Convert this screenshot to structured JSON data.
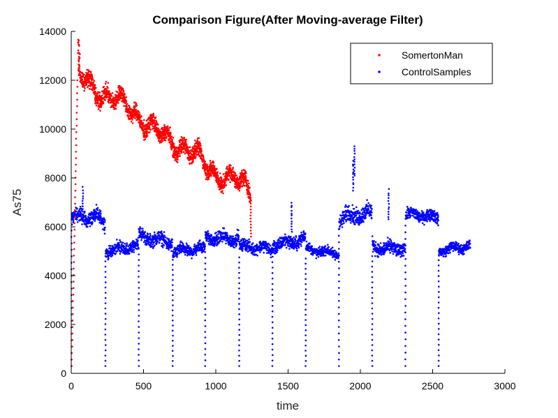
{
  "chart_data": {
    "type": "scatter",
    "title": "Comparison Figure(After Moving-average Filter)",
    "xlabel": "time",
    "ylabel": "As75",
    "xlim": [
      0,
      3000
    ],
    "ylim": [
      0,
      14000
    ],
    "xticks": [
      "0",
      "500",
      "1000",
      "1500",
      "2000",
      "2500",
      "3000"
    ],
    "yticks": [
      "0",
      "2000",
      "4000",
      "6000",
      "8000",
      "10000",
      "12000",
      "14000"
    ],
    "grid": false,
    "legend_position": "top-right",
    "series": [
      {
        "name": "SomertonMan",
        "color": "#ff0000",
        "x_range": [
          0,
          1250
        ],
        "start_drop_to": 300,
        "peak": 13700,
        "trend": [
          [
            50,
            12200
          ],
          [
            200,
            11500
          ],
          [
            400,
            10900
          ],
          [
            600,
            9800
          ],
          [
            800,
            9200
          ],
          [
            1000,
            8200
          ],
          [
            1200,
            7700
          ],
          [
            1240,
            7400
          ]
        ],
        "spread": 500,
        "end_drop_to": 5600
      },
      {
        "name": "ControlSamples",
        "color": "#0000ff",
        "x_range": [
          0,
          2760
        ],
        "segments": [
          {
            "start": 0,
            "end": 235,
            "mean": 6300,
            "spread": 450
          },
          {
            "start": 235,
            "end": 465,
            "mean": 5150,
            "spread": 350
          },
          {
            "start": 465,
            "end": 700,
            "mean": 5500,
            "spread": 400
          },
          {
            "start": 700,
            "end": 925,
            "mean": 5000,
            "spread": 350
          },
          {
            "start": 925,
            "end": 1160,
            "mean": 5600,
            "spread": 400
          },
          {
            "start": 1160,
            "end": 1390,
            "mean": 5100,
            "spread": 350
          },
          {
            "start": 1390,
            "end": 1620,
            "mean": 5400,
            "spread": 400
          },
          {
            "start": 1620,
            "end": 1850,
            "mean": 5000,
            "spread": 300
          },
          {
            "start": 1850,
            "end": 2080,
            "mean": 6400,
            "spread": 500
          },
          {
            "start": 2080,
            "end": 2310,
            "mean": 5200,
            "spread": 400
          },
          {
            "start": 2310,
            "end": 2540,
            "mean": 6400,
            "spread": 350
          },
          {
            "start": 2540,
            "end": 2760,
            "mean": 5150,
            "spread": 300
          }
        ],
        "drop_min": 300,
        "spikes": [
          [
            1960,
            9300
          ],
          [
            1950,
            8700
          ],
          [
            2195,
            7500
          ],
          [
            1525,
            7000
          ],
          [
            80,
            7600
          ]
        ]
      }
    ]
  }
}
